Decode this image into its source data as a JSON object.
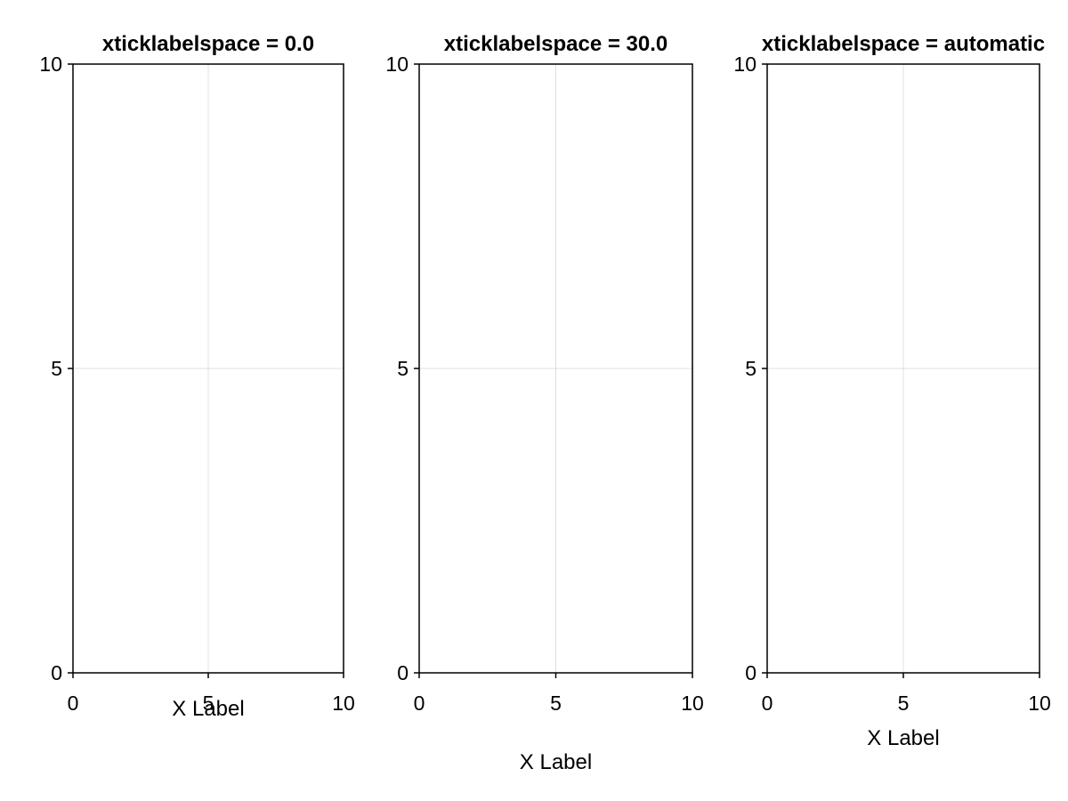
{
  "chart_data": [
    {
      "type": "scatter",
      "title": "xticklabelspace = 0.0",
      "xlabel": "X Label",
      "ylabel": "",
      "xlim": [
        0,
        10
      ],
      "ylim": [
        0,
        10
      ],
      "xticks": [
        0,
        5,
        10
      ],
      "yticks": [
        0,
        5,
        10
      ],
      "xtick_labels": [
        "0",
        "5",
        "10"
      ],
      "ytick_labels": [
        "0",
        "5",
        "10"
      ],
      "grid": true,
      "series": []
    },
    {
      "type": "scatter",
      "title": "xticklabelspace = 30.0",
      "xlabel": "X Label",
      "ylabel": "",
      "xlim": [
        0,
        10
      ],
      "ylim": [
        0,
        10
      ],
      "xticks": [
        0,
        5,
        10
      ],
      "yticks": [
        0,
        5,
        10
      ],
      "xtick_labels": [
        "0",
        "5",
        "10"
      ],
      "ytick_labels": [
        "0",
        "5",
        "10"
      ],
      "grid": true,
      "series": []
    },
    {
      "type": "scatter",
      "title": "xticklabelspace = automatic",
      "xlabel": "X Label",
      "ylabel": "",
      "xlim": [
        0,
        10
      ],
      "ylim": [
        0,
        10
      ],
      "xticks": [
        0,
        5,
        10
      ],
      "yticks": [
        0,
        5,
        10
      ],
      "xtick_labels": [
        "0",
        "5",
        "10"
      ],
      "ytick_labels": [
        "0",
        "5",
        "10"
      ],
      "grid": true,
      "series": []
    }
  ]
}
